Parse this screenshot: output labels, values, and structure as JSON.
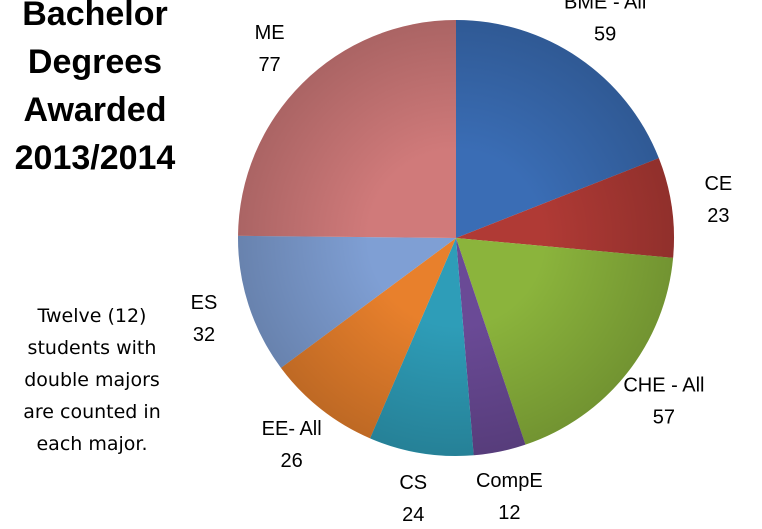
{
  "chart_data": {
    "type": "pie",
    "title": "Bachelor Degrees Awarded 2013/2014",
    "annotation": "Twelve (12) students with double majors are counted in each major.",
    "categories": [
      "BME - All",
      "CE",
      "CHE - All",
      "CompE",
      "CS",
      "EE- All",
      "ES",
      "ME"
    ],
    "values": [
      59,
      23,
      57,
      12,
      24,
      26,
      32,
      77
    ],
    "colors": [
      "#3a6db5",
      "#b03a35",
      "#8bb43c",
      "#6a4a96",
      "#2e9db8",
      "#e8802c",
      "#7f9fd4",
      "#d07a7a"
    ]
  }
}
